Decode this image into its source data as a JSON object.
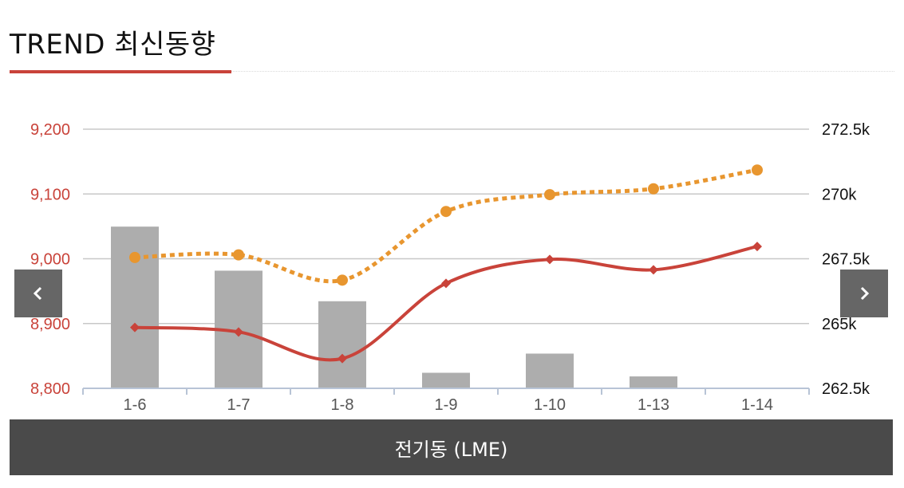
{
  "header": {
    "title": "TREND 최신동향"
  },
  "footer": {
    "label": "전기동 (LME)"
  },
  "nav": {
    "prev_icon": "chevron-left-icon",
    "next_icon": "chevron-right-icon"
  },
  "colors": {
    "accent": "#c9433a",
    "price_line": "#c9433a",
    "dotted_line": "#e8962f",
    "bars": "#adadad",
    "grid": "#c8c8c8",
    "nav_bg": "#666666",
    "footer_bg": "#4a4a4a"
  },
  "chart_data": {
    "type": "bar",
    "categories": [
      "1-6",
      "1-7",
      "1-8",
      "1-9",
      "1-10",
      "1-13",
      "1-14"
    ],
    "left_axis": {
      "ylim": [
        8800,
        9200
      ],
      "ticks": [
        "8,800",
        "8,900",
        "9,000",
        "9,100",
        "9,200"
      ]
    },
    "right_axis": {
      "ylim": [
        262500,
        272500
      ],
      "ticks": [
        "262.5k",
        "265k",
        "267.5k",
        "270k",
        "272.5k"
      ]
    },
    "series": [
      {
        "type": "bar",
        "axis": "right",
        "values": [
          268740,
          267040,
          265860,
          263100,
          263840,
          262960,
          null
        ]
      },
      {
        "type": "line",
        "style": "solid",
        "marker": "diamond",
        "axis": "left",
        "values": [
          8894,
          8887,
          8846,
          8962,
          8999,
          8983,
          9019
        ]
      },
      {
        "type": "line",
        "style": "dotted",
        "marker": "circle",
        "axis": "left",
        "values": [
          9002,
          9006,
          8967,
          9073,
          9099,
          9108,
          9137
        ]
      }
    ],
    "grid": true
  }
}
